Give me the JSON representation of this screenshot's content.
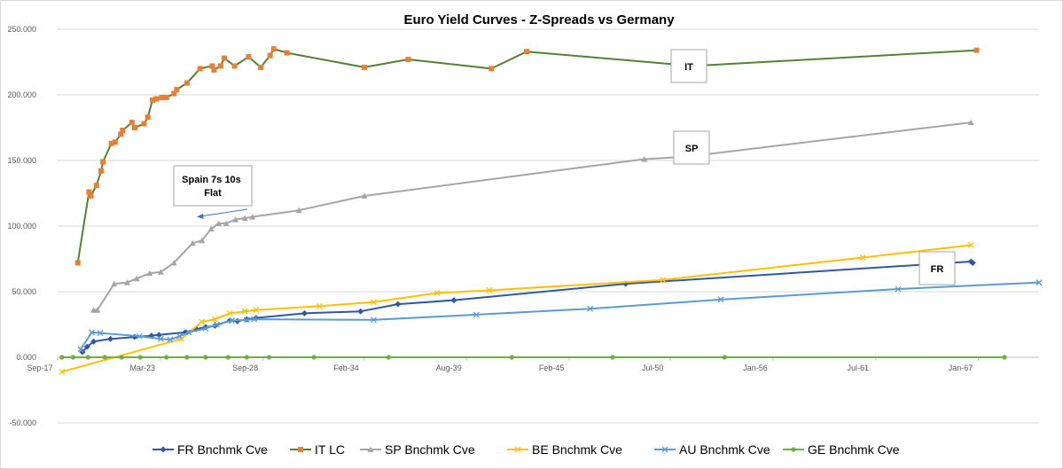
{
  "chart_data": {
    "type": "line",
    "title": "Euro Yield Curves - Z-Spreads vs Germany",
    "ylim": [
      -50,
      250
    ],
    "yticks": [
      "250.000",
      "200.000",
      "150.000",
      "100.000",
      "50.000",
      "0.000",
      "-50.000"
    ],
    "xlim": [
      2017.67,
      2070.25
    ],
    "xticks": [
      {
        "label": "Sep-17",
        "x": 2017.67
      },
      {
        "label": "Mar-23",
        "x": 2023.17
      },
      {
        "label": "Sep-28",
        "x": 2028.67
      },
      {
        "label": "Feb-34",
        "x": 2034.08
      },
      {
        "label": "Aug-39",
        "x": 2039.58
      },
      {
        "label": "Feb-45",
        "x": 2045.08
      },
      {
        "label": "Jul-50",
        "x": 2050.5
      },
      {
        "label": "Jan-56",
        "x": 2056.0
      },
      {
        "label": "Jul-61",
        "x": 2061.5
      },
      {
        "label": "Jan-67",
        "x": 2067.0
      }
    ],
    "grid": "horizontal",
    "legend_position": "bottom",
    "series": [
      {
        "name": "FR Bnchmk Cve",
        "color": "#2E58A6",
        "marker": "diamond",
        "points": [
          [
            2019.0,
            4
          ],
          [
            2019.25,
            8
          ],
          [
            2019.6,
            12
          ],
          [
            2020.5,
            14
          ],
          [
            2021.8,
            15.5
          ],
          [
            2022.7,
            16.5
          ],
          [
            2023.1,
            17
          ],
          [
            2024.5,
            19
          ],
          [
            2025.1,
            21.5
          ],
          [
            2025.6,
            23
          ],
          [
            2026.1,
            24
          ],
          [
            2026.9,
            28
          ],
          [
            2027.3,
            27.5
          ],
          [
            2027.8,
            29
          ],
          [
            2028.3,
            30
          ],
          [
            2030.9,
            33.5
          ],
          [
            2033.9,
            35
          ],
          [
            2035.9,
            40.5
          ],
          [
            2038.9,
            43.5
          ],
          [
            2048.1,
            56
          ],
          [
            2066.6,
            73
          ],
          [
            2066.7,
            72
          ]
        ]
      },
      {
        "name": "IT LC",
        "color": "#538135",
        "marker_color": "#ED7D31",
        "marker": "square",
        "points": [
          [
            2018.75,
            72
          ],
          [
            2019.35,
            126
          ],
          [
            2019.45,
            123
          ],
          [
            2019.75,
            131
          ],
          [
            2020.0,
            142
          ],
          [
            2020.1,
            149
          ],
          [
            2020.55,
            163
          ],
          [
            2020.75,
            164
          ],
          [
            2021.05,
            170
          ],
          [
            2021.15,
            173
          ],
          [
            2021.65,
            179
          ],
          [
            2021.8,
            175
          ],
          [
            2022.3,
            178
          ],
          [
            2022.5,
            183
          ],
          [
            2022.75,
            196
          ],
          [
            2022.95,
            197
          ],
          [
            2023.25,
            198
          ],
          [
            2023.5,
            198
          ],
          [
            2023.9,
            201
          ],
          [
            2024.05,
            204
          ],
          [
            2024.6,
            209
          ],
          [
            2025.3,
            220
          ],
          [
            2025.95,
            222
          ],
          [
            2026.05,
            219
          ],
          [
            2026.4,
            222
          ],
          [
            2026.6,
            228
          ],
          [
            2027.15,
            222
          ],
          [
            2027.9,
            229
          ],
          [
            2028.55,
            221
          ],
          [
            2029.05,
            230
          ],
          [
            2029.25,
            235
          ],
          [
            2029.95,
            232
          ],
          [
            2034.1,
            221
          ],
          [
            2036.45,
            227
          ],
          [
            2040.9,
            220
          ],
          [
            2042.8,
            233
          ],
          [
            2051.7,
            222
          ],
          [
            2066.9,
            234
          ]
        ]
      },
      {
        "name": "SP Bnchmk Cve",
        "color": "#A5A5A5",
        "marker": "triangle",
        "points": [
          [
            2019.6,
            36
          ],
          [
            2019.8,
            36
          ],
          [
            2020.7,
            56
          ],
          [
            2021.4,
            57
          ],
          [
            2021.9,
            60
          ],
          [
            2022.6,
            64
          ],
          [
            2023.2,
            65
          ],
          [
            2023.9,
            72
          ],
          [
            2024.9,
            87
          ],
          [
            2025.4,
            89
          ],
          [
            2025.9,
            98
          ],
          [
            2026.3,
            102
          ],
          [
            2026.7,
            102
          ],
          [
            2027.2,
            105
          ],
          [
            2027.7,
            106
          ],
          [
            2028.1,
            107
          ],
          [
            2030.6,
            112
          ],
          [
            2034.1,
            123
          ],
          [
            2049.1,
            151
          ],
          [
            2051.4,
            153
          ],
          [
            2066.6,
            179
          ]
        ]
      },
      {
        "name": "BE Bnchmk Cve",
        "color": "#FFC000",
        "marker": "x",
        "points": [
          [
            2017.9,
            -11
          ],
          [
            2024.3,
            14
          ],
          [
            2025.4,
            27
          ],
          [
            2026.1,
            29
          ],
          [
            2026.9,
            33.5
          ],
          [
            2027.7,
            35
          ],
          [
            2028.3,
            36
          ],
          [
            2031.7,
            39
          ],
          [
            2034.6,
            42
          ],
          [
            2038.0,
            49
          ],
          [
            2040.8,
            51
          ],
          [
            2050.1,
            59
          ],
          [
            2060.8,
            76
          ],
          [
            2066.6,
            85.5
          ]
        ]
      },
      {
        "name": "AU Bnchmk Cve",
        "color": "#5B9BD5",
        "marker": "x",
        "points": [
          [
            2018.9,
            6
          ],
          [
            2019.5,
            19
          ],
          [
            2019.95,
            18.5
          ],
          [
            2022.05,
            16
          ],
          [
            2023.2,
            14
          ],
          [
            2023.7,
            13.5
          ],
          [
            2024.2,
            16
          ],
          [
            2024.7,
            19
          ],
          [
            2025.6,
            22
          ],
          [
            2026.2,
            25
          ],
          [
            2027.0,
            28
          ],
          [
            2027.8,
            28.5
          ],
          [
            2028.2,
            29
          ],
          [
            2034.6,
            28.5
          ],
          [
            2040.1,
            32.5
          ],
          [
            2046.2,
            37
          ],
          [
            2053.2,
            44
          ],
          [
            2062.7,
            52
          ],
          [
            2070.25,
            57
          ]
        ]
      },
      {
        "name": "GE Bnchmk Cve",
        "color": "#70AD47",
        "marker": "circle",
        "points": [
          [
            2017.9,
            0
          ],
          [
            2018.5,
            0
          ],
          [
            2019.3,
            0
          ],
          [
            2020.2,
            0
          ],
          [
            2021.1,
            0
          ],
          [
            2022.1,
            0
          ],
          [
            2023.5,
            0
          ],
          [
            2024.6,
            0
          ],
          [
            2025.6,
            0
          ],
          [
            2026.8,
            0
          ],
          [
            2027.8,
            0
          ],
          [
            2029.0,
            0
          ],
          [
            2031.4,
            0
          ],
          [
            2035.4,
            0
          ],
          [
            2042.0,
            0
          ],
          [
            2047.4,
            0
          ],
          [
            2053.4,
            0
          ],
          [
            2068.4,
            0
          ]
        ]
      }
    ],
    "annotations": [
      {
        "text": "IT",
        "series": "IT LC"
      },
      {
        "text": "SP",
        "series": "SP Bnchmk Cve"
      },
      {
        "text": "FR",
        "series": "FR Bnchmk Cve"
      },
      {
        "text": "Spain 7s 10s Flat"
      }
    ]
  }
}
